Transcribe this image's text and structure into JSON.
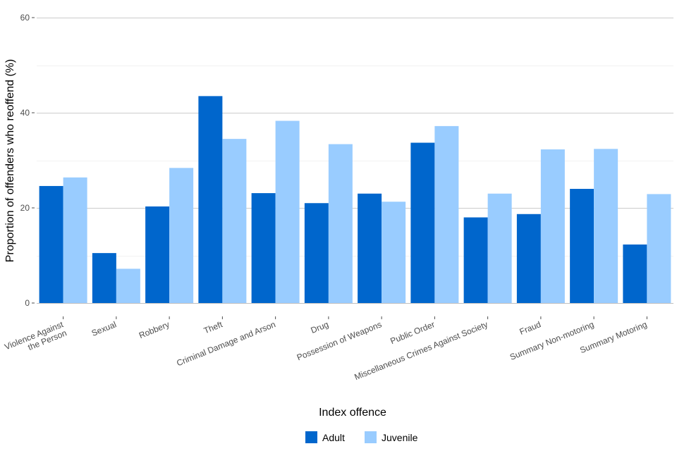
{
  "chart_data": {
    "type": "bar",
    "title": "",
    "xlabel": "Index offence",
    "ylabel": "Proportion of offenders who reoffend (%)",
    "ylim": [
      0,
      60
    ],
    "yticks": [
      0,
      20,
      40,
      60
    ],
    "grid": true,
    "legend_position": "bottom",
    "categories": [
      [
        "Violence Against",
        "the Person"
      ],
      [
        "Sexual"
      ],
      [
        "Robbery"
      ],
      [
        "Theft"
      ],
      [
        "Criminal Damage and Arson"
      ],
      [
        "Drug"
      ],
      [
        "Possession of Weapons"
      ],
      [
        "Public Order"
      ],
      [
        "Miscellaneous Crimes Against Society"
      ],
      [
        "Fraud"
      ],
      [
        "Summary Non-motoring"
      ],
      [
        "Summary Motoring"
      ]
    ],
    "series": [
      {
        "name": "Adult",
        "color": "#0066cc",
        "values": [
          24.6,
          10.5,
          20.3,
          43.5,
          23.1,
          21.0,
          23.0,
          33.7,
          18.0,
          18.7,
          24.0,
          12.3
        ]
      },
      {
        "name": "Juvenile",
        "color": "#99ccff",
        "values": [
          26.4,
          7.2,
          28.4,
          34.5,
          38.3,
          33.4,
          21.3,
          37.2,
          23.0,
          32.3,
          32.4,
          22.9
        ]
      }
    ]
  }
}
